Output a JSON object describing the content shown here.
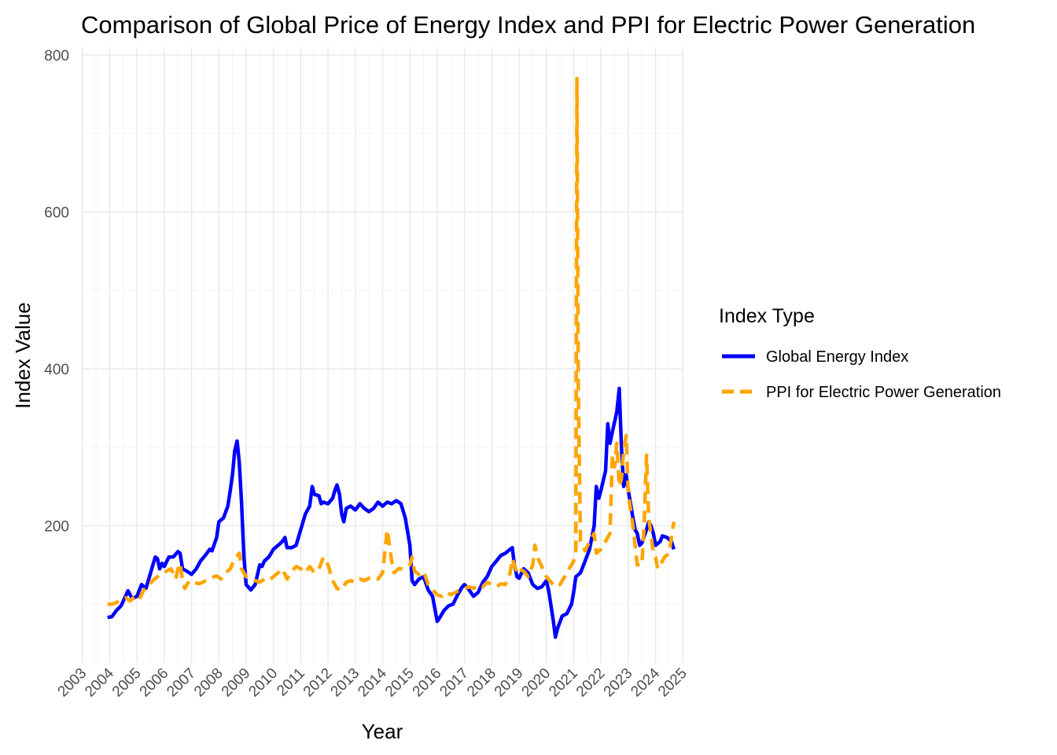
{
  "chart_data": {
    "type": "line",
    "title": "Comparison of Global Price of Energy Index and PPI for Electric Power Generation",
    "xlabel": "Year",
    "ylabel": "Index Value",
    "xlim": [
      2002.95,
      2025.05
    ],
    "ylim": [
      25,
      810
    ],
    "y_ticks": [
      200,
      400,
      600,
      800
    ],
    "x_ticks": [
      "2003",
      "2004",
      "2005",
      "2006",
      "2007",
      "2008",
      "2009",
      "2010",
      "2011",
      "2012",
      "2013",
      "2014",
      "2015",
      "2016",
      "2017",
      "2018",
      "2019",
      "2020",
      "2021",
      "2022",
      "2023",
      "2024",
      "2025"
    ],
    "grid": true,
    "legend": {
      "title": "Index Type",
      "position": "right"
    },
    "series": [
      {
        "name": "Global Energy Index",
        "color": "#0000ff",
        "dash": "solid",
        "points": [
          [
            2003.92,
            83
          ],
          [
            2004.08,
            84
          ],
          [
            2004.25,
            92
          ],
          [
            2004.42,
            98
          ],
          [
            2004.58,
            110
          ],
          [
            2004.67,
            117
          ],
          [
            2004.83,
            107
          ],
          [
            2005.0,
            110
          ],
          [
            2005.17,
            125
          ],
          [
            2005.33,
            120
          ],
          [
            2005.5,
            140
          ],
          [
            2005.67,
            160
          ],
          [
            2005.75,
            158
          ],
          [
            2005.83,
            145
          ],
          [
            2005.92,
            152
          ],
          [
            2006.0,
            148
          ],
          [
            2006.17,
            160
          ],
          [
            2006.33,
            160
          ],
          [
            2006.5,
            167
          ],
          [
            2006.58,
            165
          ],
          [
            2006.67,
            145
          ],
          [
            2006.83,
            142
          ],
          [
            2007.0,
            138
          ],
          [
            2007.17,
            145
          ],
          [
            2007.33,
            155
          ],
          [
            2007.5,
            162
          ],
          [
            2007.67,
            170
          ],
          [
            2007.75,
            168
          ],
          [
            2007.92,
            185
          ],
          [
            2008.0,
            205
          ],
          [
            2008.17,
            210
          ],
          [
            2008.33,
            225
          ],
          [
            2008.42,
            245
          ],
          [
            2008.5,
            265
          ],
          [
            2008.58,
            295
          ],
          [
            2008.67,
            308
          ],
          [
            2008.75,
            280
          ],
          [
            2008.83,
            230
          ],
          [
            2008.92,
            160
          ],
          [
            2009.0,
            125
          ],
          [
            2009.17,
            118
          ],
          [
            2009.33,
            125
          ],
          [
            2009.5,
            150
          ],
          [
            2009.58,
            148
          ],
          [
            2009.67,
            155
          ],
          [
            2009.83,
            160
          ],
          [
            2010.0,
            170
          ],
          [
            2010.17,
            175
          ],
          [
            2010.33,
            180
          ],
          [
            2010.42,
            185
          ],
          [
            2010.5,
            172
          ],
          [
            2010.67,
            172
          ],
          [
            2010.83,
            175
          ],
          [
            2011.0,
            195
          ],
          [
            2011.17,
            215
          ],
          [
            2011.33,
            225
          ],
          [
            2011.42,
            250
          ],
          [
            2011.5,
            240
          ],
          [
            2011.67,
            238
          ],
          [
            2011.75,
            228
          ],
          [
            2011.83,
            230
          ],
          [
            2012.0,
            228
          ],
          [
            2012.17,
            235
          ],
          [
            2012.25,
            245
          ],
          [
            2012.33,
            252
          ],
          [
            2012.42,
            240
          ],
          [
            2012.5,
            215
          ],
          [
            2012.58,
            205
          ],
          [
            2012.67,
            222
          ],
          [
            2012.83,
            225
          ],
          [
            2013.0,
            220
          ],
          [
            2013.17,
            228
          ],
          [
            2013.33,
            222
          ],
          [
            2013.5,
            218
          ],
          [
            2013.67,
            222
          ],
          [
            2013.83,
            230
          ],
          [
            2014.0,
            225
          ],
          [
            2014.17,
            230
          ],
          [
            2014.33,
            228
          ],
          [
            2014.5,
            232
          ],
          [
            2014.67,
            228
          ],
          [
            2014.83,
            210
          ],
          [
            2015.0,
            175
          ],
          [
            2015.08,
            130
          ],
          [
            2015.17,
            125
          ],
          [
            2015.33,
            132
          ],
          [
            2015.5,
            135
          ],
          [
            2015.67,
            118
          ],
          [
            2015.83,
            110
          ],
          [
            2016.0,
            78
          ],
          [
            2016.08,
            82
          ],
          [
            2016.25,
            92
          ],
          [
            2016.42,
            98
          ],
          [
            2016.58,
            100
          ],
          [
            2016.75,
            112
          ],
          [
            2016.92,
            122
          ],
          [
            2017.0,
            125
          ],
          [
            2017.17,
            118
          ],
          [
            2017.33,
            110
          ],
          [
            2017.5,
            115
          ],
          [
            2017.67,
            128
          ],
          [
            2017.83,
            135
          ],
          [
            2018.0,
            148
          ],
          [
            2018.17,
            155
          ],
          [
            2018.33,
            162
          ],
          [
            2018.5,
            165
          ],
          [
            2018.67,
            170
          ],
          [
            2018.75,
            172
          ],
          [
            2018.83,
            150
          ],
          [
            2018.92,
            135
          ],
          [
            2019.0,
            133
          ],
          [
            2019.17,
            145
          ],
          [
            2019.33,
            140
          ],
          [
            2019.5,
            125
          ],
          [
            2019.67,
            120
          ],
          [
            2019.83,
            122
          ],
          [
            2020.0,
            130
          ],
          [
            2020.08,
            118
          ],
          [
            2020.25,
            80
          ],
          [
            2020.33,
            58
          ],
          [
            2020.42,
            70
          ],
          [
            2020.58,
            85
          ],
          [
            2020.75,
            88
          ],
          [
            2020.92,
            100
          ],
          [
            2021.0,
            115
          ],
          [
            2021.08,
            135
          ],
          [
            2021.25,
            140
          ],
          [
            2021.42,
            155
          ],
          [
            2021.58,
            170
          ],
          [
            2021.75,
            200
          ],
          [
            2021.83,
            250
          ],
          [
            2021.92,
            235
          ],
          [
            2022.0,
            245
          ],
          [
            2022.17,
            270
          ],
          [
            2022.25,
            330
          ],
          [
            2022.33,
            305
          ],
          [
            2022.42,
            320
          ],
          [
            2022.58,
            345
          ],
          [
            2022.67,
            375
          ],
          [
            2022.75,
            300
          ],
          [
            2022.83,
            250
          ],
          [
            2022.92,
            265
          ],
          [
            2023.0,
            245
          ],
          [
            2023.17,
            210
          ],
          [
            2023.25,
            195
          ],
          [
            2023.33,
            190
          ],
          [
            2023.42,
            175
          ],
          [
            2023.5,
            178
          ],
          [
            2023.67,
            195
          ],
          [
            2023.75,
            205
          ],
          [
            2023.83,
            200
          ],
          [
            2023.92,
            190
          ],
          [
            2024.0,
            175
          ],
          [
            2024.17,
            180
          ],
          [
            2024.25,
            187
          ],
          [
            2024.42,
            185
          ],
          [
            2024.58,
            180
          ],
          [
            2024.67,
            170
          ]
        ]
      },
      {
        "name": "PPI for Electric Power Generation",
        "color": "#ffa500",
        "dash": "dashed",
        "points": [
          [
            2003.92,
            100
          ],
          [
            2004.08,
            100
          ],
          [
            2004.25,
            102
          ],
          [
            2004.42,
            106
          ],
          [
            2004.58,
            108
          ],
          [
            2004.75,
            104
          ],
          [
            2004.92,
            110
          ],
          [
            2005.08,
            106
          ],
          [
            2005.25,
            118
          ],
          [
            2005.42,
            124
          ],
          [
            2005.58,
            130
          ],
          [
            2005.75,
            135
          ],
          [
            2005.92,
            140
          ],
          [
            2006.08,
            142
          ],
          [
            2006.25,
            145
          ],
          [
            2006.42,
            132
          ],
          [
            2006.5,
            145
          ],
          [
            2006.58,
            152
          ],
          [
            2006.67,
            130
          ],
          [
            2006.75,
            120
          ],
          [
            2006.92,
            130
          ],
          [
            2007.08,
            128
          ],
          [
            2007.25,
            126
          ],
          [
            2007.42,
            128
          ],
          [
            2007.58,
            132
          ],
          [
            2007.75,
            134
          ],
          [
            2007.92,
            136
          ],
          [
            2008.08,
            132
          ],
          [
            2008.25,
            140
          ],
          [
            2008.42,
            145
          ],
          [
            2008.58,
            158
          ],
          [
            2008.75,
            165
          ],
          [
            2008.83,
            145
          ],
          [
            2009.0,
            135
          ],
          [
            2009.17,
            132
          ],
          [
            2009.33,
            130
          ],
          [
            2009.5,
            128
          ],
          [
            2009.67,
            132
          ],
          [
            2009.83,
            130
          ],
          [
            2010.0,
            135
          ],
          [
            2010.17,
            140
          ],
          [
            2010.33,
            145
          ],
          [
            2010.42,
            138
          ],
          [
            2010.5,
            132
          ],
          [
            2010.67,
            142
          ],
          [
            2010.83,
            148
          ],
          [
            2011.0,
            145
          ],
          [
            2011.17,
            140
          ],
          [
            2011.33,
            148
          ],
          [
            2011.5,
            140
          ],
          [
            2011.67,
            145
          ],
          [
            2011.83,
            160
          ],
          [
            2012.0,
            150
          ],
          [
            2012.17,
            130
          ],
          [
            2012.33,
            120
          ],
          [
            2012.5,
            118
          ],
          [
            2012.67,
            128
          ],
          [
            2012.83,
            130
          ],
          [
            2013.0,
            128
          ],
          [
            2013.17,
            132
          ],
          [
            2013.33,
            130
          ],
          [
            2013.5,
            133
          ],
          [
            2013.67,
            135
          ],
          [
            2013.83,
            132
          ],
          [
            2014.0,
            140
          ],
          [
            2014.17,
            195
          ],
          [
            2014.33,
            155
          ],
          [
            2014.42,
            140
          ],
          [
            2014.58,
            145
          ],
          [
            2014.75,
            145
          ],
          [
            2014.92,
            148
          ],
          [
            2015.0,
            150
          ],
          [
            2015.08,
            160
          ],
          [
            2015.17,
            142
          ],
          [
            2015.33,
            138
          ],
          [
            2015.5,
            142
          ],
          [
            2015.67,
            125
          ],
          [
            2015.83,
            118
          ],
          [
            2016.0,
            112
          ],
          [
            2016.17,
            110
          ],
          [
            2016.33,
            115
          ],
          [
            2016.5,
            112
          ],
          [
            2016.67,
            115
          ],
          [
            2016.83,
            118
          ],
          [
            2017.0,
            120
          ],
          [
            2017.17,
            122
          ],
          [
            2017.33,
            120
          ],
          [
            2017.5,
            125
          ],
          [
            2017.67,
            122
          ],
          [
            2017.83,
            128
          ],
          [
            2018.0,
            125
          ],
          [
            2018.17,
            122
          ],
          [
            2018.33,
            126
          ],
          [
            2018.5,
            125
          ],
          [
            2018.67,
            140
          ],
          [
            2018.75,
            158
          ],
          [
            2018.83,
            150
          ],
          [
            2018.92,
            140
          ],
          [
            2019.0,
            145
          ],
          [
            2019.17,
            142
          ],
          [
            2019.33,
            135
          ],
          [
            2019.5,
            150
          ],
          [
            2019.58,
            175
          ],
          [
            2019.67,
            160
          ],
          [
            2019.83,
            148
          ],
          [
            2020.0,
            135
          ],
          [
            2020.17,
            128
          ],
          [
            2020.33,
            122
          ],
          [
            2020.5,
            125
          ],
          [
            2020.67,
            135
          ],
          [
            2020.83,
            145
          ],
          [
            2020.92,
            150
          ],
          [
            2021.0,
            155
          ],
          [
            2021.08,
            165
          ],
          [
            2021.12,
            770
          ],
          [
            2021.17,
            380
          ],
          [
            2021.25,
            180
          ],
          [
            2021.42,
            168
          ],
          [
            2021.58,
            180
          ],
          [
            2021.75,
            190
          ],
          [
            2021.83,
            165
          ],
          [
            2022.0,
            170
          ],
          [
            2022.17,
            180
          ],
          [
            2022.33,
            190
          ],
          [
            2022.42,
            290
          ],
          [
            2022.5,
            275
          ],
          [
            2022.58,
            305
          ],
          [
            2022.67,
            250
          ],
          [
            2022.75,
            260
          ],
          [
            2022.83,
            295
          ],
          [
            2022.92,
            315
          ],
          [
            2023.0,
            240
          ],
          [
            2023.17,
            200
          ],
          [
            2023.33,
            150
          ],
          [
            2023.5,
            150
          ],
          [
            2023.58,
            200
          ],
          [
            2023.67,
            290
          ],
          [
            2023.75,
            210
          ],
          [
            2023.92,
            165
          ],
          [
            2024.0,
            160
          ],
          [
            2024.08,
            145
          ],
          [
            2024.17,
            150
          ],
          [
            2024.33,
            160
          ],
          [
            2024.5,
            165
          ],
          [
            2024.58,
            185
          ],
          [
            2024.67,
            205
          ]
        ]
      }
    ]
  }
}
